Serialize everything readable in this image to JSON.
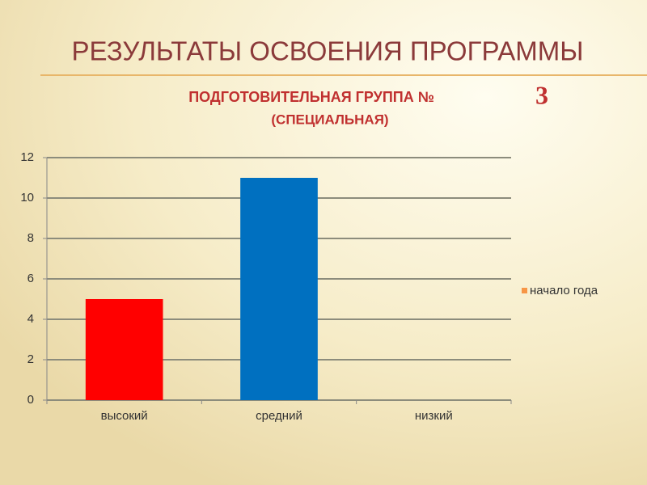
{
  "chart_data": {
    "type": "bar",
    "title": "РЕЗУЛЬТАТЫ ОСВОЕНИЯ ПРОГРАММЫ",
    "subtitle": "ПОДГОТОВИТЕЛЬНАЯ ГРУППА №",
    "group_number": "3",
    "subtitle_note": "(СПЕЦИАЛЬНАЯ)",
    "categories": [
      "высокий",
      "средний",
      "низкий"
    ],
    "series": [
      {
        "name": "начало года",
        "color": "#f79646",
        "values": [
          5,
          11,
          0
        ],
        "point_colors": [
          "#ff0000",
          "#0070c0",
          "#0070c0"
        ]
      }
    ],
    "ylim": [
      0,
      12
    ],
    "yticks": [
      0,
      2,
      4,
      6,
      8,
      10,
      12
    ],
    "grid": true,
    "legend": "right"
  }
}
